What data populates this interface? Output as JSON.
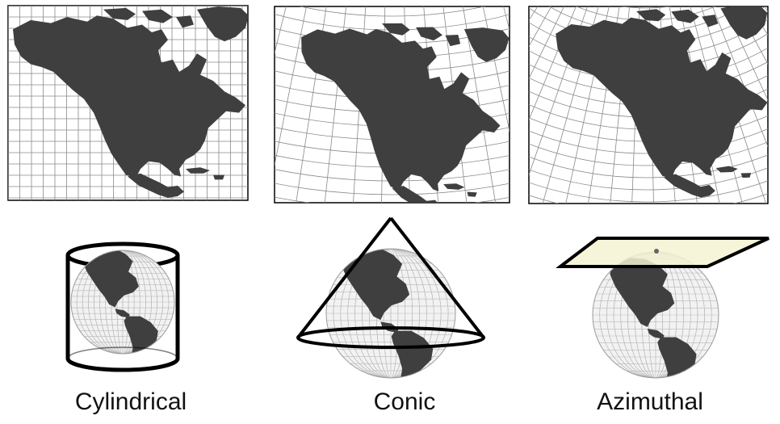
{
  "figure": {
    "panels": [
      {
        "id": "cylindrical",
        "label": "Cylindrical"
      },
      {
        "id": "conic",
        "label": "Conic"
      },
      {
        "id": "azimuthal",
        "label": "Azimuthal"
      }
    ]
  },
  "colors": {
    "land": "#3f3f3f",
    "map_background": "#ffffff",
    "graticule": "#8a8a8a",
    "globe_ocean": "#f2f2f2",
    "globe_grid": "#b8b8b8",
    "surface_outline": "#000000",
    "plane_fill": "#f6f3d2"
  }
}
